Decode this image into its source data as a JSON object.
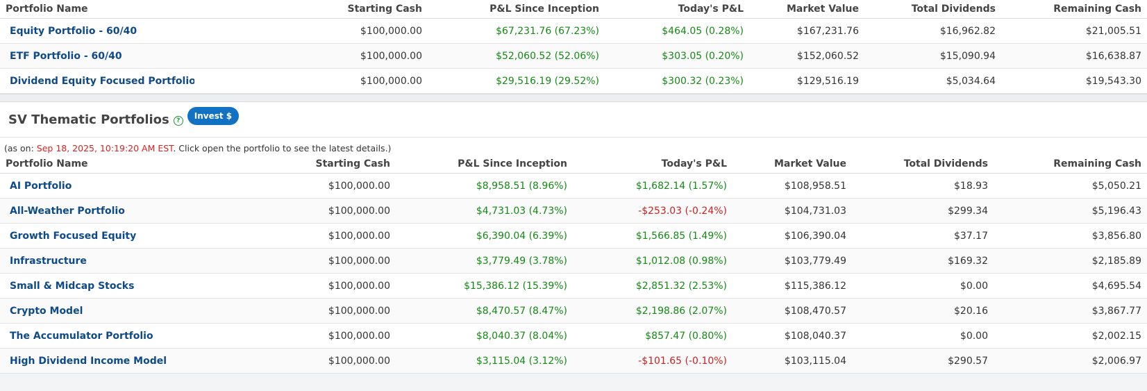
{
  "columns": [
    "Portfolio Name",
    "Starting Cash",
    "P&L Since Inception",
    "Today's P&L",
    "Market Value",
    "Total Dividends",
    "Remaining Cash"
  ],
  "top_rows": [
    {
      "name": "Equity Portfolio - 60/40",
      "start": "$100,000.00",
      "pl": "$67,231.76 (67.23%)",
      "pl_sign": "pos",
      "today": "$464.05 (0.28%)",
      "today_sign": "pos",
      "mv": "$167,231.76",
      "div": "$16,962.82",
      "cash": "$21,005.51"
    },
    {
      "name": "ETF Portfolio - 60/40",
      "start": "$100,000.00",
      "pl": "$52,060.52 (52.06%)",
      "pl_sign": "pos",
      "today": "$303.05 (0.20%)",
      "today_sign": "pos",
      "mv": "$152,060.52",
      "div": "$15,090.94",
      "cash": "$16,638.87"
    },
    {
      "name": "Dividend Equity Focused Portfolio",
      "start": "$100,000.00",
      "pl": "$29,516.19 (29.52%)",
      "pl_sign": "pos",
      "today": "$300.32 (0.23%)",
      "today_sign": "pos",
      "mv": "$129,516.19",
      "div": "$5,034.64",
      "cash": "$19,543.30"
    }
  ],
  "thematic": {
    "title": "SV Thematic Portfolios",
    "help_icon": "?",
    "invest_label": "Invest $",
    "asof_prefix": "(as on: ",
    "asof_timestamp": "Sep 18, 2025, 10:19:20 AM EST",
    "asof_suffix": ". Click open the portfolio to see the latest details.)"
  },
  "thematic_rows": [
    {
      "name": "AI Portfolio",
      "start": "$100,000.00",
      "pl": "$8,958.51 (8.96%)",
      "pl_sign": "pos",
      "today": "$1,682.14 (1.57%)",
      "today_sign": "pos",
      "mv": "$108,958.51",
      "div": "$18.93",
      "cash": "$5,050.21"
    },
    {
      "name": "All-Weather Portfolio",
      "start": "$100,000.00",
      "pl": "$4,731.03 (4.73%)",
      "pl_sign": "pos",
      "today": "-$253.03 (-0.24%)",
      "today_sign": "neg",
      "mv": "$104,731.03",
      "div": "$299.34",
      "cash": "$5,196.43"
    },
    {
      "name": "Growth Focused Equity",
      "start": "$100,000.00",
      "pl": "$6,390.04 (6.39%)",
      "pl_sign": "pos",
      "today": "$1,566.85 (1.49%)",
      "today_sign": "pos",
      "mv": "$106,390.04",
      "div": "$37.17",
      "cash": "$3,856.80"
    },
    {
      "name": "Infrastructure",
      "start": "$100,000.00",
      "pl": "$3,779.49 (3.78%)",
      "pl_sign": "pos",
      "today": "$1,012.08 (0.98%)",
      "today_sign": "pos",
      "mv": "$103,779.49",
      "div": "$169.32",
      "cash": "$2,185.89"
    },
    {
      "name": "Small & Midcap Stocks",
      "start": "$100,000.00",
      "pl": "$15,386.12 (15.39%)",
      "pl_sign": "pos",
      "today": "$2,851.32 (2.53%)",
      "today_sign": "pos",
      "mv": "$115,386.12",
      "div": "$0.00",
      "cash": "$4,695.54"
    },
    {
      "name": "Crypto Model",
      "start": "$100,000.00",
      "pl": "$8,470.57 (8.47%)",
      "pl_sign": "pos",
      "today": "$2,198.86 (2.07%)",
      "today_sign": "pos",
      "mv": "$108,470.57",
      "div": "$20.16",
      "cash": "$3,867.77"
    },
    {
      "name": "The Accumulator Portfolio",
      "start": "$100,000.00",
      "pl": "$8,040.37 (8.04%)",
      "pl_sign": "pos",
      "today": "$857.47 (0.80%)",
      "today_sign": "pos",
      "mv": "$108,040.37",
      "div": "$0.00",
      "cash": "$2,002.15"
    },
    {
      "name": "High Dividend Income Model",
      "start": "$100,000.00",
      "pl": "$3,115.04 (3.12%)",
      "pl_sign": "pos",
      "today": "-$101.65 (-0.10%)",
      "today_sign": "neg",
      "mv": "$103,115.04",
      "div": "$290.57",
      "cash": "$2,006.97"
    }
  ]
}
